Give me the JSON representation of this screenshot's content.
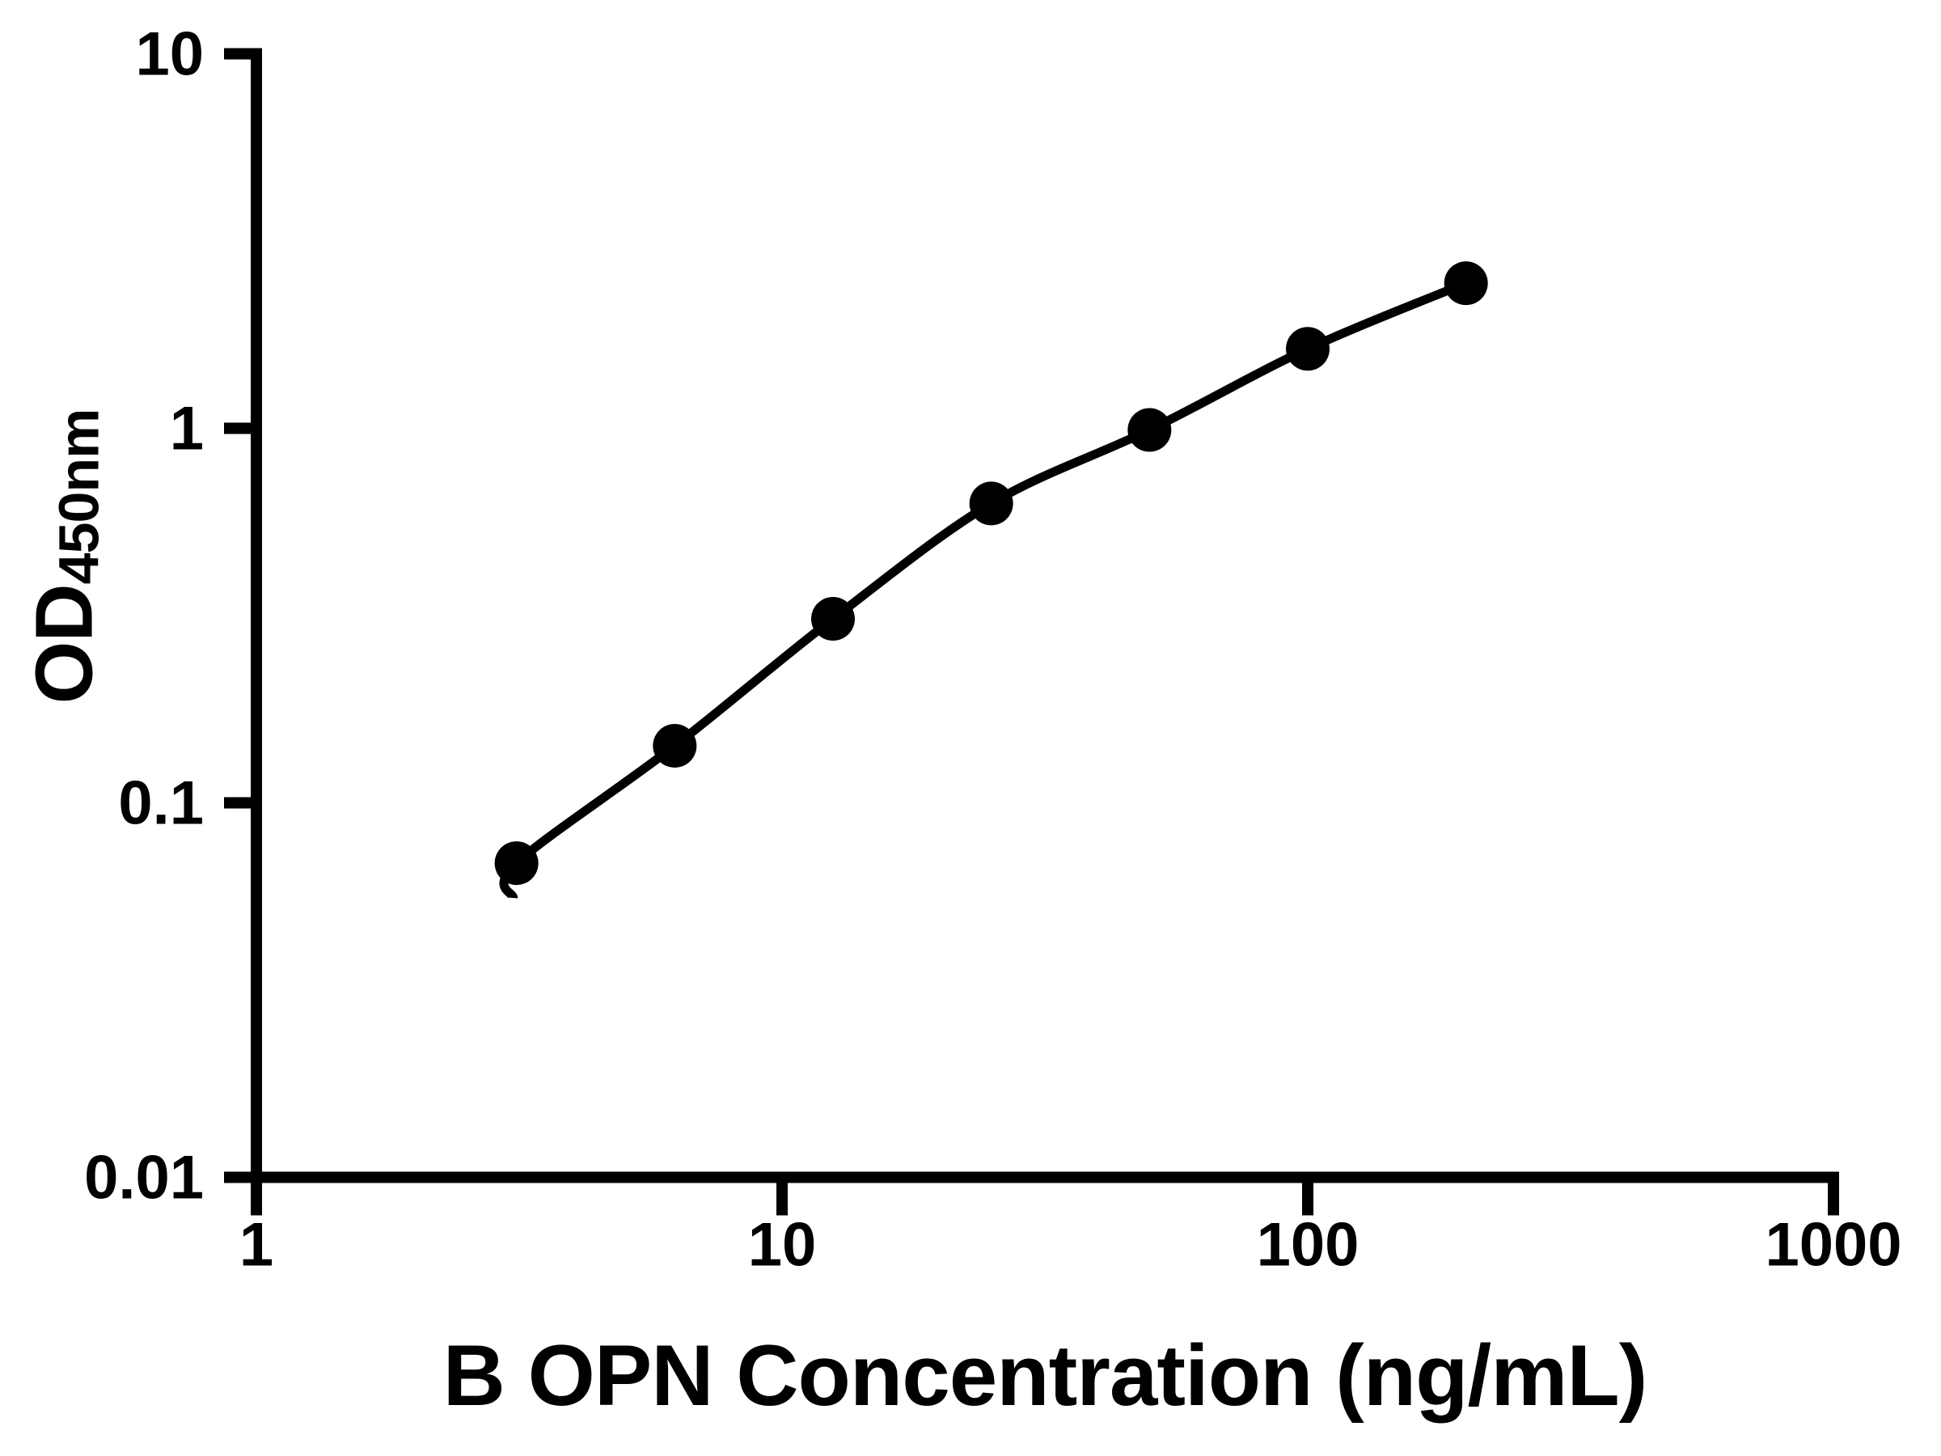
{
  "colors": {
    "foreground": "#000000",
    "background": "#ffffff"
  },
  "chart_data": {
    "type": "scatter",
    "subtype": "smooth-line-with-markers",
    "xlabel": "B OPN Concentration (ng/mL)",
    "ylabel": "OD450nm",
    "ylabel_main": "OD",
    "ylabel_sub": "450nm",
    "x_scale": "log10",
    "y_scale": "log10",
    "xlim": [
      1,
      1000
    ],
    "ylim": [
      0.01,
      10
    ],
    "x_ticks": {
      "values": [
        1,
        10,
        100,
        1000
      ],
      "labels": [
        "1",
        "10",
        "100",
        "1000"
      ]
    },
    "y_ticks": {
      "values": [
        10,
        1,
        0.1,
        0.01
      ],
      "labels": [
        "10",
        "1",
        "0.1",
        "0.01"
      ]
    },
    "grid": false,
    "legend": false,
    "marker": {
      "shape": "filled-circle",
      "color": "#000000"
    },
    "series": [
      {
        "x": [
          3.125,
          6.25,
          12.5,
          25,
          50,
          100,
          200
        ],
        "y": [
          0.069,
          0.142,
          0.31,
          0.63,
          0.99,
          1.63,
          2.44
        ]
      }
    ]
  }
}
